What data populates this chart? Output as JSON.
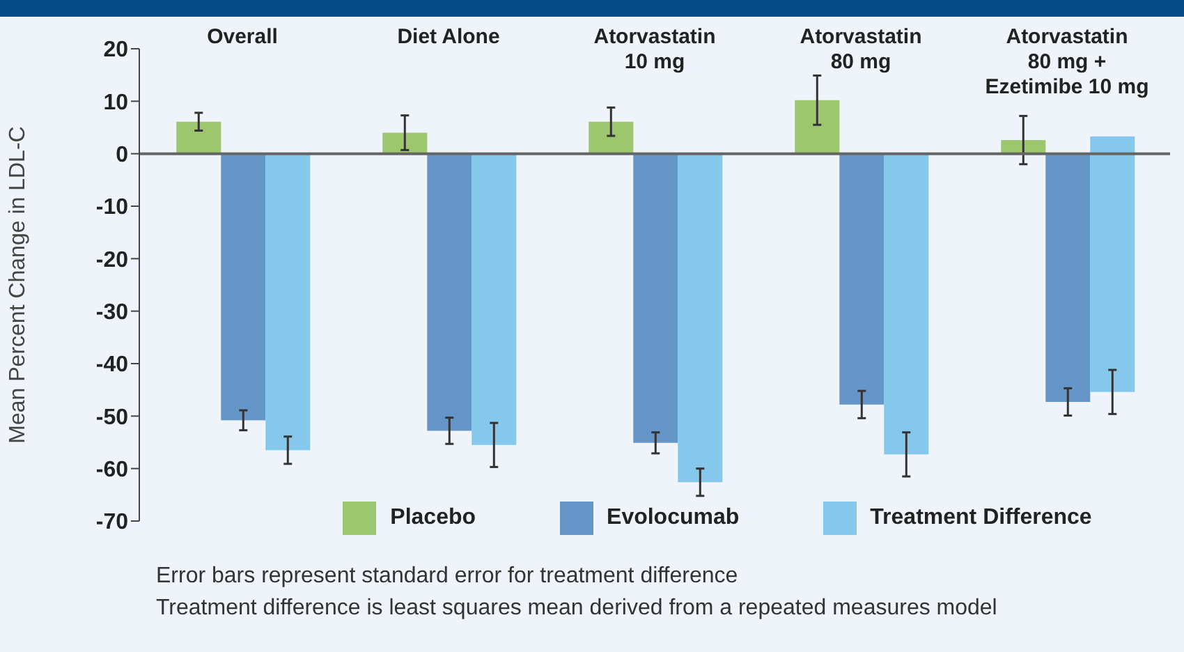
{
  "chart_data": {
    "type": "bar",
    "ylabel": "Mean Percent Change in LDL-C",
    "categories": [
      "Overall",
      "Diet Alone",
      "Atorvastatin\n10 mg",
      "Atorvastatin\n80 mg",
      "Atorvastatin\n80 mg +\nEzetimibe 10 mg"
    ],
    "series": [
      {
        "name": "Placebo",
        "color": "#9dc76f",
        "values": [
          6.1,
          4.0,
          6.1,
          10.2,
          2.6
        ],
        "errors": [
          1.7,
          3.3,
          2.7,
          4.7,
          4.6
        ]
      },
      {
        "name": "Evolocumab",
        "color": "#6596c7",
        "values": [
          -50.8,
          -52.8,
          -55.1,
          -47.8,
          -47.3
        ],
        "errors": [
          1.9,
          2.5,
          2.0,
          2.6,
          2.6
        ]
      },
      {
        "name": "Treatment Difference",
        "color": "#85c8ec",
        "values": [
          -56.5,
          -55.5,
          -62.6,
          -57.3,
          -48.7
        ],
        "base": [
          0,
          0,
          0,
          0,
          3.3
        ],
        "errors": [
          2.6,
          4.2,
          2.6,
          4.2,
          4.2
        ]
      }
    ],
    "ylim": [
      -70,
      20
    ],
    "yticks": [
      20,
      10,
      0,
      -10,
      -20,
      -30,
      -40,
      -50,
      -60,
      -70
    ],
    "ref_lines": [
      {
        "axis": "y",
        "value": 0,
        "color": "#666666"
      }
    ],
    "grid": false,
    "legend": "bottom",
    "annotations": [
      "Error bars represent standard error for treatment difference",
      "Treatment difference is least squares mean derived from a repeated measures model"
    ]
  }
}
